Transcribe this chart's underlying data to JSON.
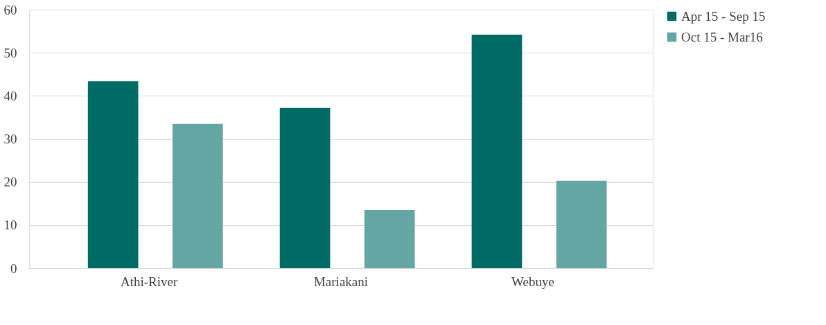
{
  "chart_data": {
    "type": "bar",
    "categories": [
      "Athi-River",
      "Mariakani",
      "Webuye"
    ],
    "series": [
      {
        "name": "Apr 15 - Sep 15",
        "color": "#006b65",
        "values": [
          43.4,
          37.2,
          54.2
        ]
      },
      {
        "name": "Oct 15 - Mar16",
        "color": "#63a6a4",
        "values": [
          33.5,
          13.5,
          20.3
        ]
      }
    ],
    "ylim": [
      0,
      60
    ],
    "yticks": [
      0,
      10,
      20,
      30,
      40,
      50,
      60
    ],
    "grid": "y",
    "legend": "right"
  }
}
